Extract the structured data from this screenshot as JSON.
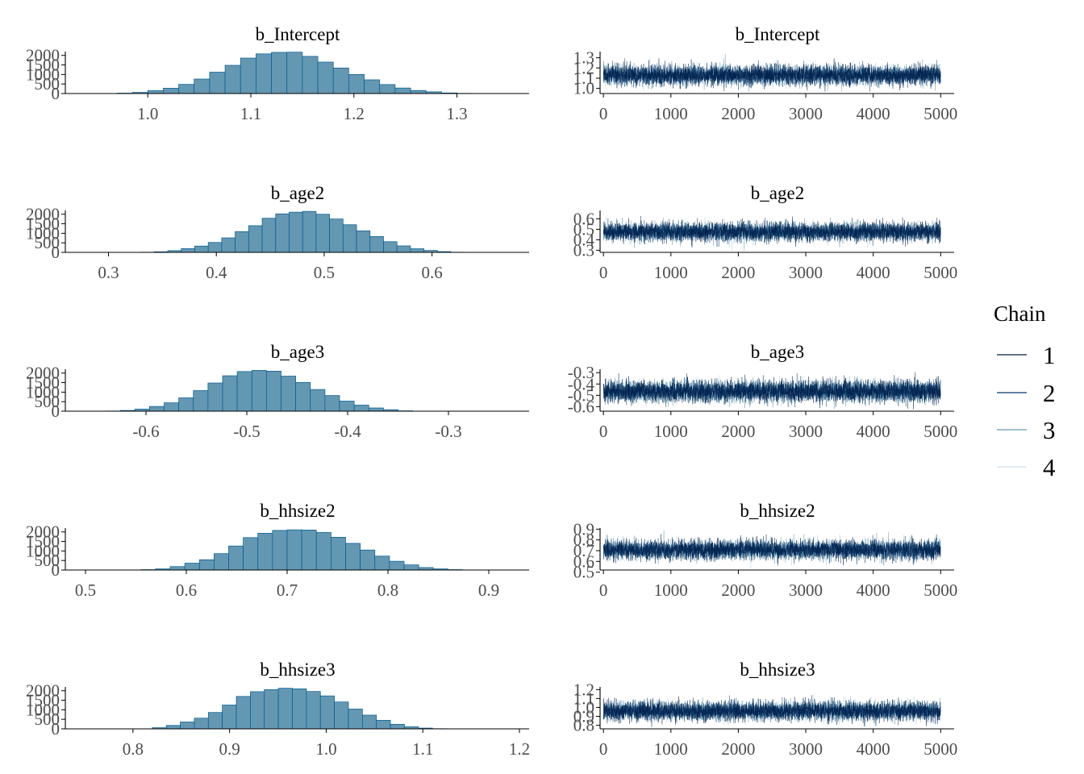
{
  "colors": {
    "hist_fill": "#6497b1",
    "hist_outline": "#005b96",
    "chain_1": "#011f4b",
    "chain_2": "#03396c",
    "chain_3": "#6497b1",
    "chain_4": "#d1e1ec"
  },
  "legend": {
    "title": "Chain",
    "labels": [
      "1",
      "2",
      "3",
      "4"
    ],
    "position": "right"
  },
  "chart_data": [
    {
      "type": "bar",
      "title": "b_Intercept",
      "xlim": [
        0.92,
        1.37
      ],
      "ylim": [
        0,
        2200
      ],
      "xticks": [
        1.0,
        1.1,
        1.2,
        1.3
      ],
      "xtick_labels": [
        "1.0",
        "1.1",
        "1.2",
        "1.3"
      ],
      "yticks": [
        0,
        500,
        1000,
        1500,
        2000
      ],
      "ytick_labels": [
        "0",
        "500",
        "1000",
        "1500",
        "2000"
      ],
      "bin_start": 0.97,
      "bin_width": 0.015,
      "counts": [
        20,
        60,
        150,
        280,
        480,
        760,
        1120,
        1480,
        1860,
        2080,
        2160,
        2170,
        1950,
        1650,
        1340,
        1000,
        720,
        470,
        290,
        160,
        90,
        30,
        10
      ]
    },
    {
      "type": "line",
      "title": "b_Intercept",
      "xlim": [
        -50,
        5200
      ],
      "ylim": [
        0.95,
        1.36
      ],
      "xticks": [
        0,
        1000,
        2000,
        3000,
        4000,
        5000
      ],
      "xtick_labels": [
        "0",
        "1000",
        "2000",
        "3000",
        "4000",
        "5000"
      ],
      "yticks": [
        1.0,
        1.1,
        1.2,
        1.3
      ],
      "ytick_labels": [
        "1.0",
        "1.1",
        "1.2",
        "1.3"
      ],
      "series_labels": [
        "1",
        "2",
        "3",
        "4"
      ],
      "iterations": 5000,
      "center": 1.13,
      "sd": 0.05
    },
    {
      "type": "bar",
      "title": "b_age2",
      "xlim": [
        0.26,
        0.69
      ],
      "ylim": [
        0,
        2200
      ],
      "xticks": [
        0.3,
        0.4,
        0.5,
        0.6
      ],
      "xtick_labels": [
        "0.3",
        "0.4",
        "0.5",
        "0.6"
      ],
      "yticks": [
        0,
        500,
        1000,
        1500,
        2000
      ],
      "ytick_labels": [
        "0",
        "500",
        "1000",
        "1500",
        "2000"
      ],
      "bin_start": 0.33,
      "bin_width": 0.0125,
      "counts": [
        10,
        30,
        90,
        200,
        330,
        520,
        760,
        1090,
        1400,
        1790,
        2020,
        2110,
        2150,
        2000,
        1750,
        1450,
        1130,
        830,
        560,
        340,
        190,
        100,
        40,
        10
      ]
    },
    {
      "type": "line",
      "title": "b_age2",
      "xlim": [
        -50,
        5200
      ],
      "ylim": [
        0.28,
        0.68
      ],
      "xticks": [
        0,
        1000,
        2000,
        3000,
        4000,
        5000
      ],
      "xtick_labels": [
        "0",
        "1000",
        "2000",
        "3000",
        "4000",
        "5000"
      ],
      "yticks": [
        0.3,
        0.4,
        0.5,
        0.6
      ],
      "ytick_labels": [
        "0.3",
        "0.4",
        "0.5",
        "0.6"
      ],
      "series_labels": [
        "1",
        "2",
        "3",
        "4"
      ],
      "iterations": 5000,
      "center": 0.475,
      "sd": 0.045
    },
    {
      "type": "bar",
      "title": "b_age3",
      "xlim": [
        -0.68,
        -0.22
      ],
      "ylim": [
        0,
        2200
      ],
      "xticks": [
        -0.6,
        -0.5,
        -0.4,
        -0.3
      ],
      "xtick_labels": [
        "-0.6",
        "-0.5",
        "-0.4",
        "-0.3"
      ],
      "yticks": [
        0,
        500,
        1000,
        1500,
        2000
      ],
      "ytick_labels": [
        "0",
        "500",
        "1000",
        "1500",
        "2000"
      ],
      "bin_start": -0.64,
      "bin_width": 0.0145,
      "counts": [
        10,
        40,
        110,
        250,
        440,
        700,
        1080,
        1480,
        1860,
        2080,
        2140,
        2100,
        1840,
        1510,
        1140,
        820,
        530,
        320,
        170,
        80,
        20
      ]
    },
    {
      "type": "line",
      "title": "b_age3",
      "xlim": [
        -50,
        5200
      ],
      "ylim": [
        -0.64,
        -0.27
      ],
      "xticks": [
        0,
        1000,
        2000,
        3000,
        4000,
        5000
      ],
      "xtick_labels": [
        "0",
        "1000",
        "2000",
        "3000",
        "4000",
        "5000"
      ],
      "yticks": [
        -0.6,
        -0.5,
        -0.4,
        -0.3
      ],
      "ytick_labels": [
        "-0.6",
        "-0.5",
        "-0.4",
        "-0.3"
      ],
      "series_labels": [
        "1",
        "2",
        "3",
        "4"
      ],
      "iterations": 5000,
      "center": -0.465,
      "sd": 0.048
    },
    {
      "type": "bar",
      "title": "b_hhsize2",
      "xlim": [
        0.48,
        0.94
      ],
      "ylim": [
        0,
        2200
      ],
      "xticks": [
        0.5,
        0.6,
        0.7,
        0.8,
        0.9
      ],
      "xtick_labels": [
        "0.5",
        "0.6",
        "0.7",
        "0.8",
        "0.9"
      ],
      "yticks": [
        0,
        500,
        1000,
        1500,
        2000
      ],
      "ytick_labels": [
        "0",
        "500",
        "1000",
        "1500",
        "2000"
      ],
      "bin_start": 0.555,
      "bin_width": 0.0145,
      "counts": [
        20,
        60,
        180,
        360,
        540,
        860,
        1260,
        1700,
        1930,
        2080,
        2110,
        2100,
        1970,
        1720,
        1400,
        1050,
        730,
        460,
        270,
        130,
        60,
        20
      ]
    },
    {
      "type": "line",
      "title": "b_hhsize2",
      "xlim": [
        -50,
        5200
      ],
      "ylim": [
        0.52,
        0.91
      ],
      "xticks": [
        0,
        1000,
        2000,
        3000,
        4000,
        5000
      ],
      "xtick_labels": [
        "0",
        "1000",
        "2000",
        "3000",
        "4000",
        "5000"
      ],
      "yticks": [
        0.5,
        0.6,
        0.7,
        0.8,
        0.9
      ],
      "ytick_labels": [
        "0.5",
        "0.6",
        "0.7",
        "0.8",
        "0.9"
      ],
      "series_labels": [
        "1",
        "2",
        "3",
        "4"
      ],
      "iterations": 5000,
      "center": 0.707,
      "sd": 0.046
    },
    {
      "type": "bar",
      "title": "b_hhsize3",
      "xlim": [
        0.73,
        1.21
      ],
      "ylim": [
        0,
        2200
      ],
      "xticks": [
        0.8,
        0.9,
        1.0,
        1.1,
        1.2
      ],
      "xtick_labels": [
        "0.8",
        "0.9",
        "1.0",
        "1.1",
        "1.2"
      ],
      "yticks": [
        0,
        500,
        1000,
        1500,
        2000
      ],
      "ytick_labels": [
        "0",
        "500",
        "1000",
        "1500",
        "2000"
      ],
      "bin_start": 0.82,
      "bin_width": 0.0145,
      "counts": [
        60,
        180,
        360,
        560,
        860,
        1250,
        1700,
        1950,
        2060,
        2130,
        2100,
        1960,
        1730,
        1410,
        1040,
        720,
        450,
        240,
        110,
        40,
        10
      ]
    },
    {
      "type": "line",
      "title": "b_hhsize3",
      "xlim": [
        -50,
        5200
      ],
      "ylim": [
        0.76,
        1.23
      ],
      "xticks": [
        0,
        1000,
        2000,
        3000,
        4000,
        5000
      ],
      "xtick_labels": [
        "0",
        "1000",
        "2000",
        "3000",
        "4000",
        "5000"
      ],
      "yticks": [
        0.8,
        0.9,
        1.0,
        1.1,
        1.2
      ],
      "ytick_labels": [
        "0.8",
        "0.9",
        "1.0",
        "1.1",
        "1.2"
      ],
      "series_labels": [
        "1",
        "2",
        "3",
        "4"
      ],
      "iterations": 5000,
      "center": 0.96,
      "sd": 0.055
    }
  ]
}
